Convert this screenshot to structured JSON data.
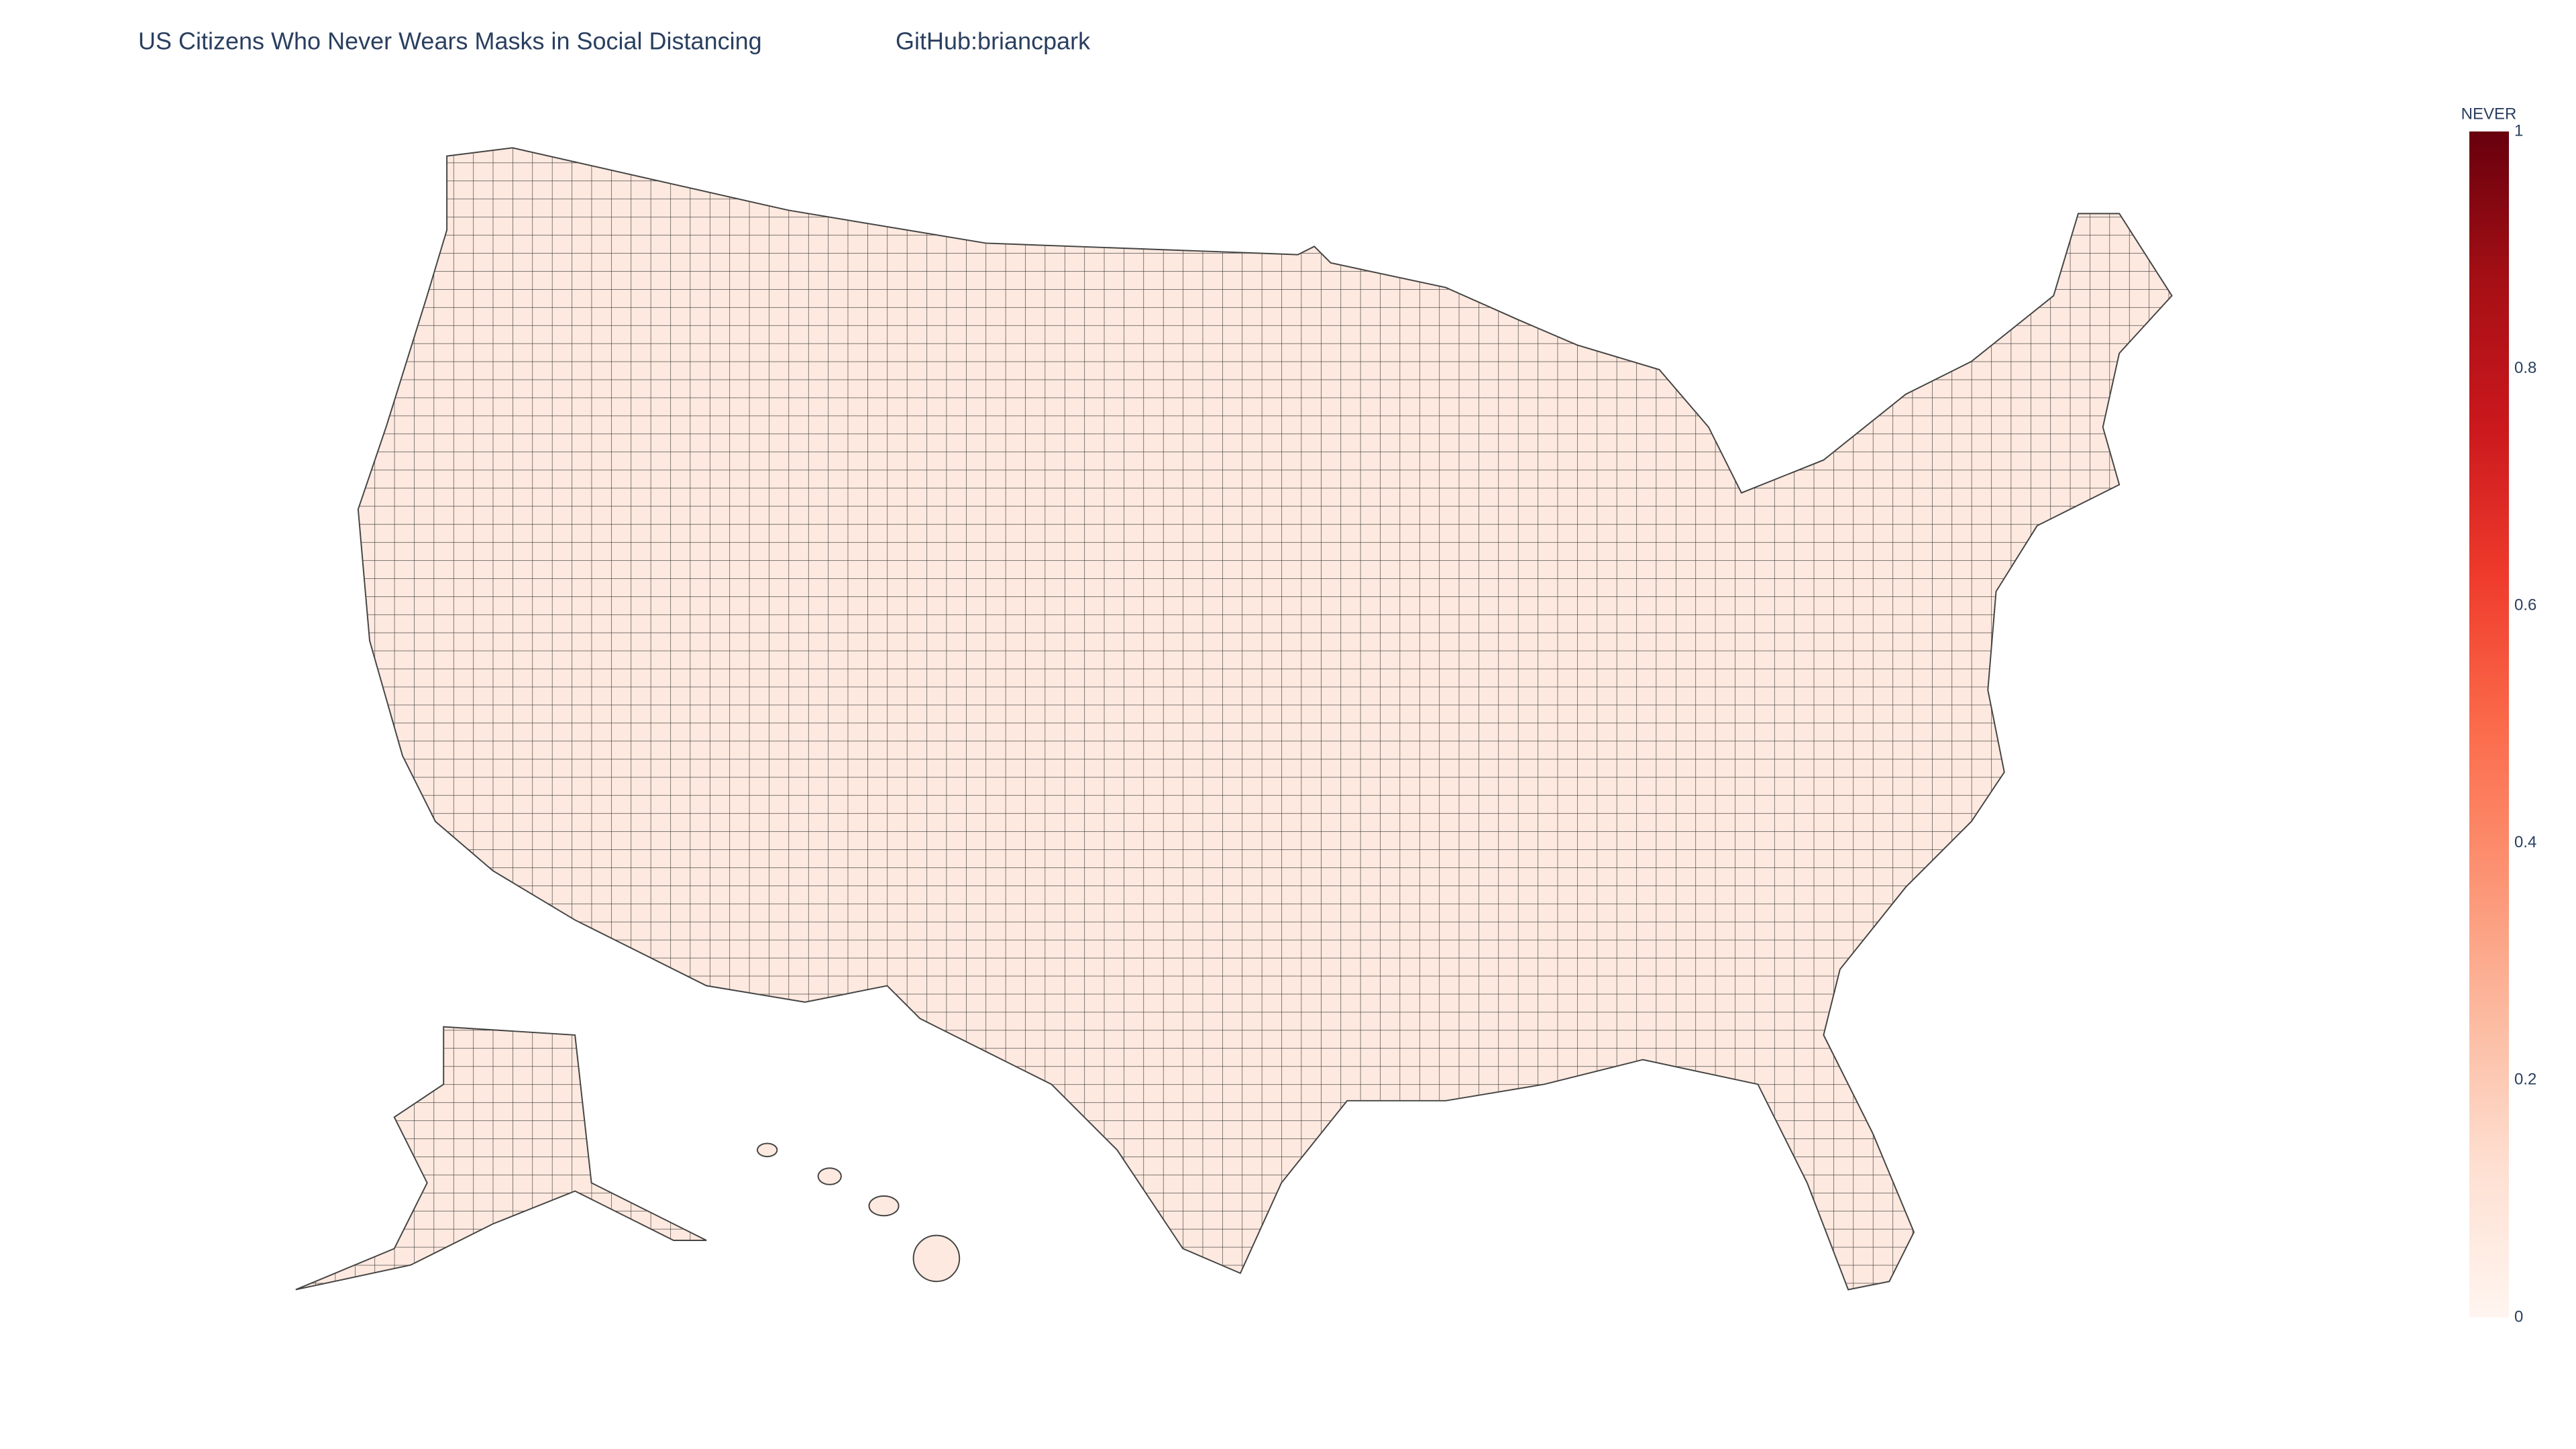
{
  "chart_data": {
    "type": "choropleth",
    "title": "US Citizens Who Never Wears Masks in Social Distancing",
    "subtitle": "GitHub:briancpark",
    "colorbar_title": "NEVER",
    "clim": [
      0,
      1
    ],
    "colorbar_ticks": [
      0,
      0.2,
      0.4,
      0.6,
      0.8,
      1
    ],
    "colorscale": [
      [
        0,
        "#fff5f0"
      ],
      [
        0.125,
        "#fee0d2"
      ],
      [
        0.25,
        "#fcbba1"
      ],
      [
        0.375,
        "#fc9272"
      ],
      [
        0.5,
        "#fb6a4a"
      ],
      [
        0.625,
        "#ef3b2c"
      ],
      [
        0.75,
        "#cb181d"
      ],
      [
        0.875,
        "#a50f15"
      ],
      [
        1,
        "#67000d"
      ]
    ]
  }
}
